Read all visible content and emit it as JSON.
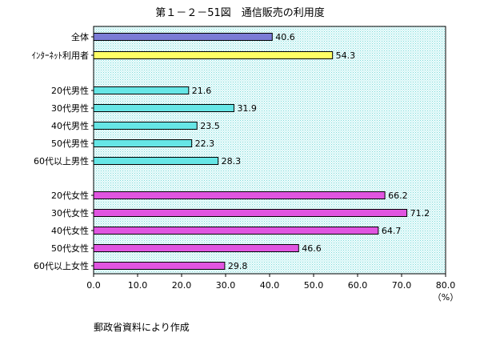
{
  "chart_data": {
    "type": "bar",
    "orientation": "horizontal",
    "title": "第１－２－51図　通信販売の利用度",
    "unit_label": "（%）",
    "source_note": "郵政省資料により作成",
    "xlim": [
      0,
      80
    ],
    "x_ticks": [
      "0.0",
      "10.0",
      "20.0",
      "30.0",
      "40.0",
      "50.0",
      "60.0",
      "70.0",
      "80.0"
    ],
    "grid": false,
    "categories": [
      "全体",
      "ｲﾝﾀｰﾈｯﾄ利用者",
      "20代男性",
      "30代男性",
      "40代男性",
      "50代男性",
      "60代以上男性",
      "20代女性",
      "30代女性",
      "40代女性",
      "50代女性",
      "60代以上女性"
    ],
    "values": [
      40.6,
      54.3,
      21.6,
      31.9,
      23.5,
      22.3,
      28.3,
      66.2,
      71.2,
      64.7,
      46.6,
      29.8
    ],
    "value_labels": [
      "40.6",
      "54.3",
      "21.6",
      "31.9",
      "23.5",
      "22.3",
      "28.3",
      "66.2",
      "71.2",
      "64.7",
      "46.6",
      "29.8"
    ],
    "colors": {
      "total": "#7b7bd6",
      "internet": "#ffff66",
      "male": "#66e6e6",
      "female": "#e055e0",
      "plot_background": "#d4f5f5",
      "bar_outline": "#000000"
    },
    "bar_colors": [
      "#7b7bd6",
      "#ffff66",
      "#66e6e6",
      "#66e6e6",
      "#66e6e6",
      "#66e6e6",
      "#66e6e6",
      "#e055e0",
      "#e055e0",
      "#e055e0",
      "#e055e0",
      "#e055e0"
    ]
  }
}
